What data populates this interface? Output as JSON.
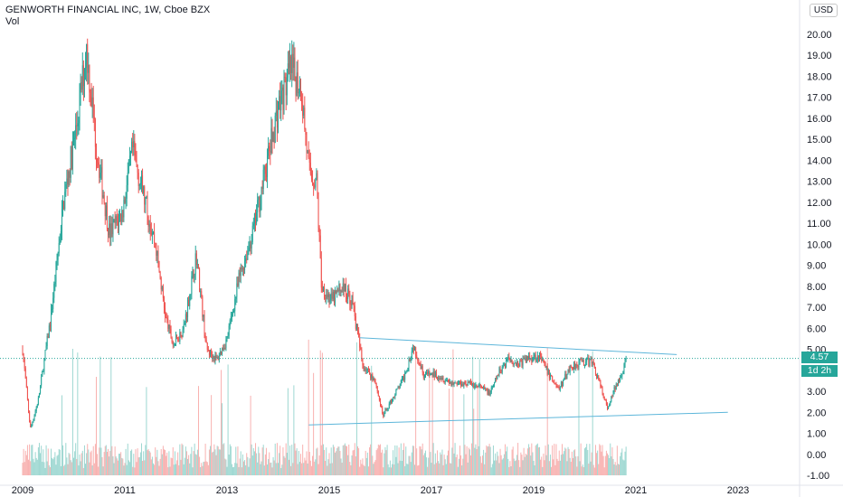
{
  "header": {
    "title": "GENWORTH FINANCIAL INC, 1W, Cboe BZX",
    "volume_label": "Vol",
    "currency": "USD"
  },
  "price_badge": {
    "value": "4.57",
    "timer": "1d 2h"
  },
  "colors": {
    "up": "#26a69a",
    "down": "#ef5350",
    "trendline": "#5db6da",
    "price_line": "#26a69a"
  },
  "chart_data": {
    "type": "candlestick",
    "title": "GENWORTH FINANCIAL INC, 1W, Cboe BZX",
    "ylabel": "",
    "ylim": [
      -1,
      21
    ],
    "xlim": [
      2009.0,
      2024.0
    ],
    "y_ticks": [
      "20.00",
      "19.00",
      "18.00",
      "17.00",
      "16.00",
      "15.00",
      "14.00",
      "13.00",
      "12.00",
      "11.00",
      "10.00",
      "9.00",
      "8.00",
      "7.00",
      "6.00",
      "5.00",
      "4.00",
      "3.00",
      "2.00",
      "1.00",
      "0.00",
      "-1.00"
    ],
    "x_ticks": [
      "2009",
      "2011",
      "2013",
      "2015",
      "2017",
      "2019",
      "2021",
      "2023"
    ],
    "last_price": 4.57,
    "price_path": [
      [
        2009.0,
        5.0
      ],
      [
        2009.15,
        1.2
      ],
      [
        2009.3,
        2.5
      ],
      [
        2009.55,
        6.5
      ],
      [
        2009.8,
        12.0
      ],
      [
        2010.05,
        15.5
      ],
      [
        2010.25,
        19.3
      ],
      [
        2010.45,
        14.5
      ],
      [
        2010.7,
        10.5
      ],
      [
        2010.95,
        11.5
      ],
      [
        2011.15,
        14.5
      ],
      [
        2011.35,
        12.5
      ],
      [
        2011.6,
        10.0
      ],
      [
        2011.8,
        6.5
      ],
      [
        2011.95,
        5.2
      ],
      [
        2012.15,
        6.0
      ],
      [
        2012.4,
        9.5
      ],
      [
        2012.6,
        5.0
      ],
      [
        2012.8,
        4.5
      ],
      [
        2013.0,
        5.5
      ],
      [
        2013.25,
        8.5
      ],
      [
        2013.5,
        10.5
      ],
      [
        2013.75,
        13.5
      ],
      [
        2014.0,
        16.5
      ],
      [
        2014.25,
        18.3
      ],
      [
        2014.45,
        17.5
      ],
      [
        2014.6,
        13.5
      ],
      [
        2014.75,
        13.0
      ],
      [
        2014.85,
        8.0
      ],
      [
        2015.05,
        7.3
      ],
      [
        2015.25,
        8.0
      ],
      [
        2015.45,
        7.3
      ],
      [
        2015.65,
        4.3
      ],
      [
        2015.9,
        3.5
      ],
      [
        2016.05,
        1.8
      ],
      [
        2016.2,
        2.5
      ],
      [
        2016.45,
        3.6
      ],
      [
        2016.65,
        5.2
      ],
      [
        2016.85,
        3.8
      ],
      [
        2017.1,
        3.8
      ],
      [
        2017.4,
        3.4
      ],
      [
        2017.7,
        3.4
      ],
      [
        2017.95,
        3.2
      ],
      [
        2018.15,
        2.9
      ],
      [
        2018.3,
        3.8
      ],
      [
        2018.5,
        4.6
      ],
      [
        2018.7,
        4.3
      ],
      [
        2018.9,
        4.6
      ],
      [
        2019.1,
        4.7
      ],
      [
        2019.3,
        3.8
      ],
      [
        2019.5,
        3.1
      ],
      [
        2019.7,
        4.1
      ],
      [
        2019.9,
        4.4
      ],
      [
        2020.15,
        4.4
      ],
      [
        2020.3,
        3.3
      ],
      [
        2020.45,
        2.1
      ],
      [
        2020.55,
        2.9
      ],
      [
        2020.7,
        3.8
      ],
      [
        2020.82,
        4.57
      ]
    ],
    "trendlines": [
      {
        "points": [
          [
            2015.6,
            5.55
          ],
          [
            2021.8,
            4.75
          ]
        ]
      },
      {
        "points": [
          [
            2014.6,
            1.4
          ],
          [
            2022.8,
            2.0
          ]
        ]
      }
    ]
  }
}
